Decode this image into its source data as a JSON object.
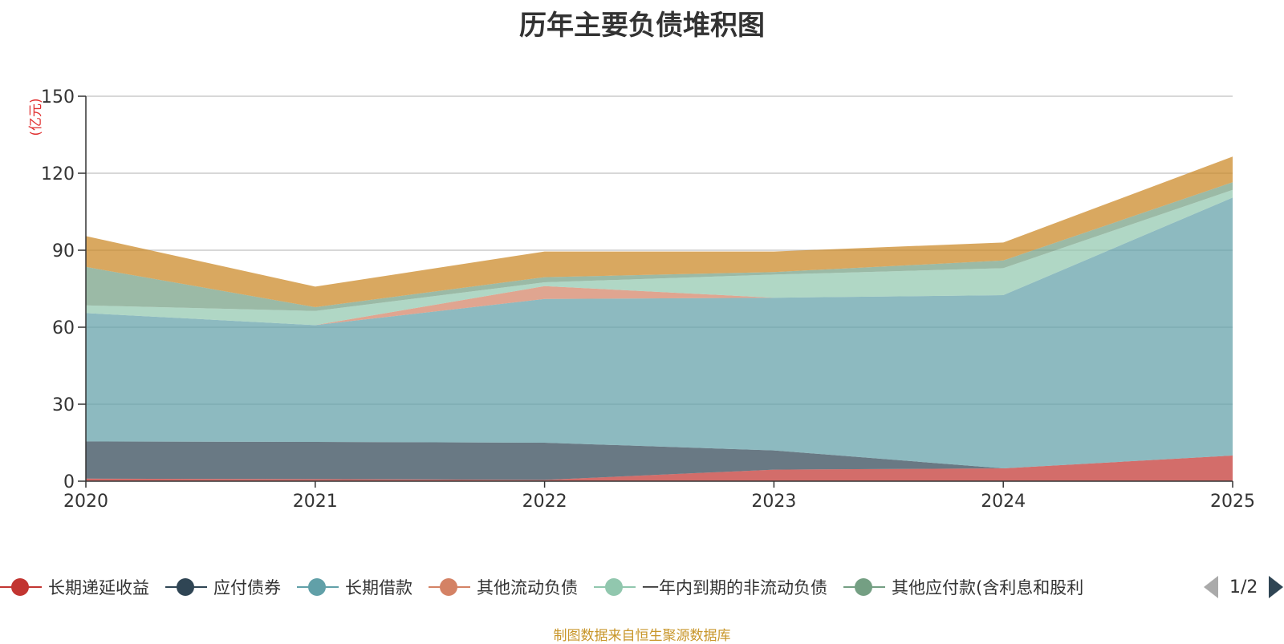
{
  "chart_data": {
    "type": "area",
    "stacked": true,
    "title": "历年主要负债堆积图",
    "unit_label": "(亿元)",
    "x": [
      "2020",
      "2021",
      "2022",
      "2023",
      "2024",
      "2025"
    ],
    "ylim": [
      0,
      150
    ],
    "yticks": [
      "0",
      "30",
      "60",
      "90",
      "120",
      "150"
    ],
    "grid": true,
    "legend_position": "bottom",
    "series": [
      {
        "name": "长期递延收益",
        "color": "#c23531",
        "values": [
          1,
          0.8,
          0.5,
          4.5,
          5,
          10
        ]
      },
      {
        "name": "应付债券",
        "color": "#2f4554",
        "values": [
          14.5,
          14.5,
          14.5,
          7.5,
          0,
          0
        ]
      },
      {
        "name": "长期借款",
        "color": "#61a0a8",
        "values": [
          50,
          45.5,
          56,
          59.5,
          67.5,
          100.5
        ]
      },
      {
        "name": "其他流动负债",
        "color": "#d48265",
        "values": [
          0,
          0,
          5,
          0,
          0,
          0
        ]
      },
      {
        "name": "一年内到期的非流动负债",
        "color": "#91c7ae",
        "values": [
          3,
          5.5,
          1.5,
          9,
          10.5,
          3
        ]
      },
      {
        "name": "其他应付款(含利息和股利)",
        "legend_label": "其他应付款(含利息和股利",
        "color": "#749f83",
        "values": [
          15,
          1.5,
          2,
          1,
          3,
          3
        ]
      },
      {
        "name": "",
        "color": "#ca8622",
        "values": [
          12,
          8,
          10,
          8,
          7,
          10
        ]
      }
    ]
  },
  "legend": {
    "page_text": "1/2"
  },
  "source_text": "制图数据来自恒生聚源数据库"
}
